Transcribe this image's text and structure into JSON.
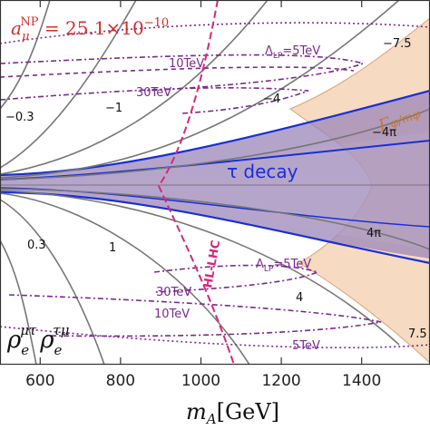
{
  "chart_data": {
    "type": "contour",
    "xlabel_main": "m",
    "xlabel_sub": "A",
    "xlabel_unit": "[GeV]",
    "xlim": [
      500,
      1570
    ],
    "xticks": [
      "600",
      "800",
      "1000",
      "1200",
      "1400"
    ],
    "xtick_values": [
      600,
      800,
      1000,
      1200,
      1400
    ],
    "title": {
      "a": "a",
      "mu": "μ",
      "np": "NP",
      "rest": " = 25.1×10",
      "exp": "−10"
    },
    "param_label": {
      "rho": "ρ",
      "e": "e",
      "mutau": "μτ",
      "taumu": "τμ"
    },
    "band_label": "τ decay",
    "hl_lhc_label": "HL-LHC",
    "width_label": "Γ",
    "width_label_rest": "φ/m",
    "width_label_end": "φ",
    "lp_labels": {
      "lambda": "Λ",
      "lp": "LP",
      "top_5": "=5TeV",
      "top_10": "10TeV",
      "top_30": "30TeV",
      "bottom_30": "30TeV",
      "bottom_10": "10TeV",
      "bottom_5": "5TeV",
      "bottom_5_prefix": "Λ",
      "bottom_5_eq": "=5TeV"
    },
    "contour_labels_top": [
      "−7.5",
      "−4",
      "−1",
      "−0.3",
      "−4π"
    ],
    "contour_labels_bottom": [
      "0.3",
      "1",
      "4",
      "7.5",
      "4π"
    ],
    "colors": {
      "tau_band_fill": "#9b86b8",
      "tau_band_edge": "#1a2fd6",
      "width_band_fill": "#f6d9bf",
      "contour_gray": "#777777",
      "lp_purple": "#7a2a8c",
      "hl_lhc": "#d6287a",
      "title_red": "#d62a2a"
    }
  }
}
